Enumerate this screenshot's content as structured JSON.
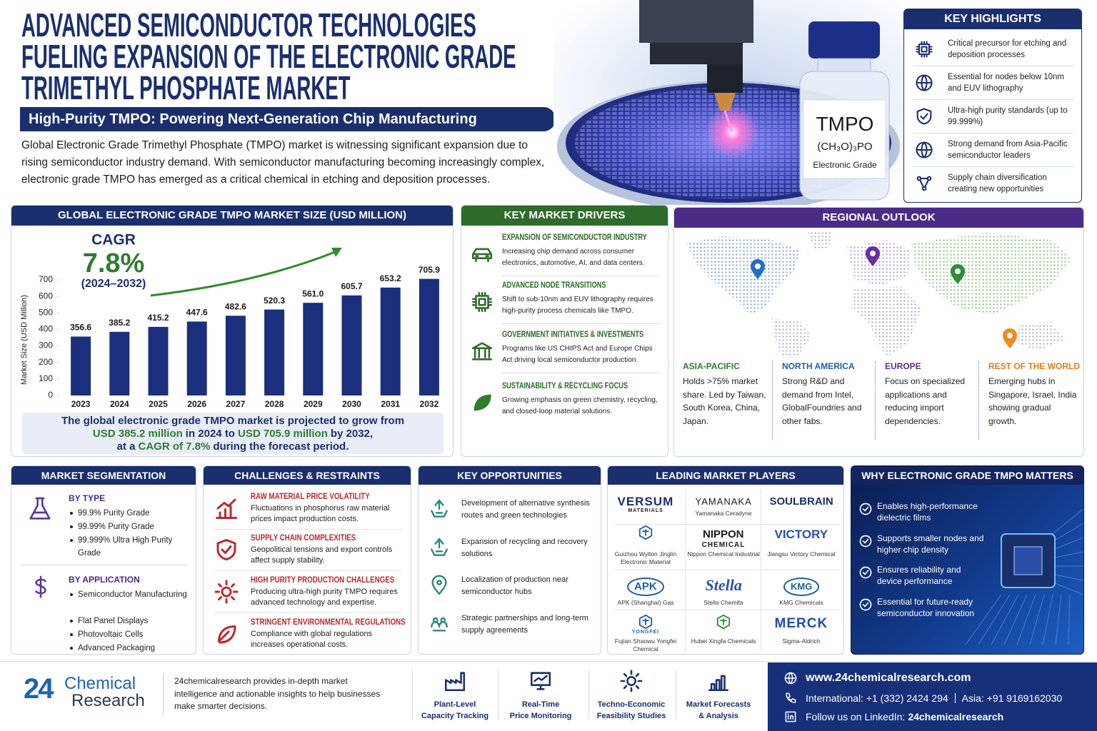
{
  "header": {
    "title": [
      "ADVANCED SEMICONDUCTOR TECHNOLOGIES",
      "FUELING EXPANSION OF THE ELECTRONIC GRADE",
      "TRIMETHYL PHOSPHATE MARKET"
    ],
    "subtitle": "High-Purity TMPO: Powering Next-Generation Chip Manufacturing",
    "intro": "Global Electronic Grade Trimethyl Phosphate (TMPO) market is witnessing significant expansion due to rising semiconductor industry demand. With semiconductor manufacturing becoming increasingly complex, electronic grade TMPO has emerged as a critical chemical in etching and deposition processes."
  },
  "product": {
    "name": "TMPO",
    "formula": "(CH₃O)₃PO",
    "grade": "Electronic Grade"
  },
  "key_highlights": {
    "title": "KEY HIGHLIGHTS",
    "items": [
      "Critical precursor for etching and deposition processes",
      "Essential for nodes below 10nm and EUV lithography",
      "Ultra-high purity standards (up to 99.999%)",
      "Strong demand from Asia-Pacific semiconductor leaders",
      "Supply chain diversification creating new opportunities"
    ]
  },
  "chart_data": {
    "type": "bar",
    "title": "GLOBAL ELECTRONIC GRADE TMPO MARKET SIZE (USD MILLION)",
    "y_label": "Market Size (USD Million)",
    "categories": [
      "2023",
      "2024",
      "2025",
      "2026",
      "2027",
      "2028",
      "2029",
      "2030",
      "2031",
      "2032"
    ],
    "values": [
      356.6,
      385.2,
      415.2,
      447.6,
      482.6,
      520.3,
      561.0,
      605.7,
      653.2,
      705.9
    ],
    "value_labels": [
      "356.6",
      "385.2",
      "415.2",
      "447.6",
      "482.6",
      "520.3",
      "561.0",
      "605.7",
      "653.2",
      "705.9"
    ],
    "color": "#1c2f7c",
    "ylim": [
      0,
      800
    ],
    "yticks": [
      0,
      100,
      200,
      300,
      400,
      500,
      600,
      700
    ],
    "grid": false,
    "cagr": {
      "label": "CAGR",
      "value": "7.8%",
      "period": "(2024–2032)"
    },
    "summary": [
      [
        "The global electronic grade TMPO market is projected to grow from"
      ],
      [
        {
          "text": "USD 385.2 million",
          "color": "#2e7d32"
        },
        "in 2024 to",
        {
          "text": "USD 705.9 million",
          "color": "#2e7d32"
        },
        "by 2032,"
      ],
      [
        "at a",
        {
          "text": "CAGR of 7.8%",
          "color": "#2e7d32"
        },
        "during the forecast period."
      ]
    ]
  },
  "drivers": {
    "title": "KEY MARKET DRIVERS",
    "items": [
      {
        "heading": "EXPANSION OF SEMICONDUCTOR INDUSTRY",
        "text": "Increasing chip demand across consumer electronics, automotive, AI, and data centers."
      },
      {
        "heading": "ADVANCED NODE TRANSITIONS",
        "text": "Shift to sub-10nm and EUV lithography requires high-purity process chemicals like TMPO."
      },
      {
        "heading": "GOVERNMENT INITIATIVES & INVESTMENTS",
        "text": "Programs like US CHIPS Act and Europe Chips Act driving local semiconductor production."
      },
      {
        "heading": "SUSTAINABILITY & RECYCLING FOCUS",
        "text": "Growing emphasis on green chemistry, recycling, and closed-loop material solutions."
      }
    ]
  },
  "regional": {
    "title": "REGIONAL OUTLOOK",
    "regions": [
      {
        "name": "ASIA-PACIFIC",
        "color": "#2e7d32",
        "text": "Holds >75% market share. Led by Taiwan, South Korea, China, Japan."
      },
      {
        "name": "NORTH AMERICA",
        "color": "#1f5fa8",
        "text": "Strong R&D and demand from Intel, GlobalFoundries and other fabs."
      },
      {
        "name": "EUROPE",
        "color": "#5b2d91",
        "text": "Focus on specialized applications and reducing import dependencies."
      },
      {
        "name": "REST OF THE WORLD",
        "color": "#e87a1e",
        "text": "Emerging hubs in Singapore, Israel, India showing gradual growth."
      }
    ]
  },
  "segmentation": {
    "title": "MARKET SEGMENTATION",
    "by_type": {
      "heading": "BY TYPE",
      "items": [
        "99.9% Purity Grade",
        "99.99% Purity Grade",
        "99.999% Ultra High Purity Grade"
      ]
    },
    "by_application": {
      "heading": "BY APPLICATION",
      "items": [
        "Semiconductor Manufacturing",
        "Flat Panel Displays",
        "Photovoltaic Cells",
        "Advanced Packaging"
      ]
    }
  },
  "challenges": {
    "title": "CHALLENGES & RESTRAINTS",
    "items": [
      {
        "heading": "RAW MATERIAL PRICE VOLATILITY",
        "text": "Fluctuations in phosphorus raw material prices impact production costs."
      },
      {
        "heading": "SUPPLY CHAIN COMPLEXITIES",
        "text": "Geopolitical tensions and export controls affect supply stability."
      },
      {
        "heading": "HIGH PURITY PRODUCTION CHALLENGES",
        "text": "Producing ultra-high purity TMPO requires advanced technology and expertise."
      },
      {
        "heading": "STRINGENT ENVIRONMENTAL REGULATIONS",
        "text": "Compliance with global regulations increases operational costs."
      }
    ]
  },
  "opportunities": {
    "title": "KEY OPPORTUNITIES",
    "items": [
      "Development of alternative synthesis routes and green technologies",
      "Expansion of recycling and recovery solutions",
      "Localization of production near semiconductor hubs",
      "Strategic partnerships and long-term supply agreements"
    ]
  },
  "players": {
    "title": "LEADING MARKET PLAYERS",
    "items": [
      {
        "logo": "VERSUM",
        "logo_sub": "MATERIALS"
      },
      {
        "logo": "YAMANAKA",
        "name": "Yamanaka Ceradyne"
      },
      {
        "logo": "SOULBRAIN"
      },
      {
        "name": "Guizhou Wylton Jinglin Electronic Material"
      },
      {
        "logo": "NIPPON",
        "logo_sub": "CHEMICAL",
        "name": "Nippon Chemical Industrial"
      },
      {
        "logo": "VICTORY",
        "name": "Jiangsu Victory Chemical"
      },
      {
        "logo": "APK",
        "name": "APK (Shanghai) Gas"
      },
      {
        "logo": "Stella",
        "name": "Stella Chemifa"
      },
      {
        "logo": "KMG",
        "name": "KMG Chemicals"
      },
      {
        "logo_sub": "YONGFEI",
        "name": "Fujian Shaowu Yongfei Chemical"
      },
      {
        "name": "Hubei Xingfa Chemicals"
      },
      {
        "logo": "MERCK",
        "name": "Sigma-Aldrich"
      }
    ]
  },
  "why": {
    "title": "WHY ELECTRONIC GRADE TMPO MATTERS",
    "items": [
      "Enables high-performance dielectric films",
      "Supports smaller nodes and higher chip density",
      "Ensures reliability and device performance",
      "Essential for future-ready semiconductor innovation"
    ]
  },
  "footer": {
    "brand": {
      "number": "24",
      "line1": "Chemical",
      "line2": "Research"
    },
    "description": "24chemicalresearch provides in-depth market intelligence and actionable insights to help businesses make smarter decisions.",
    "services": [
      {
        "lines": [
          "Plant-Level",
          "Capacity Tracking"
        ]
      },
      {
        "lines": [
          "Real-Time",
          "Price Monitoring"
        ]
      },
      {
        "lines": [
          "Techno-Economic",
          "Feasibility Studies"
        ]
      },
      {
        "lines": [
          "Market Forecasts",
          "& Analysis"
        ]
      }
    ],
    "contact": {
      "website": "www.24chemicalresearch.com",
      "international": "International: +1 (332) 2424 294",
      "asia": "Asia: +91 9169162030",
      "linkedin_prefix": "Follow us on LinkedIn:",
      "linkedin_handle": "24chemicalresearch"
    }
  }
}
